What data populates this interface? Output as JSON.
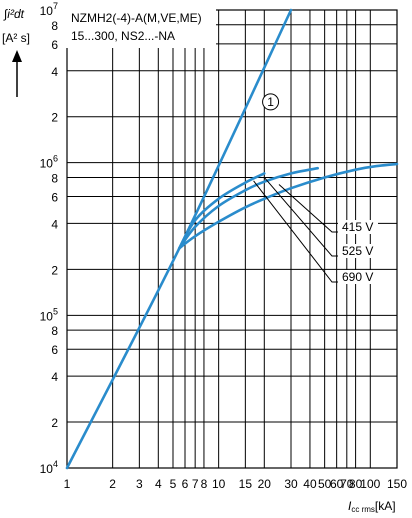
{
  "chart_data": {
    "type": "line",
    "title_lines": [
      "NZMH2(-4)-A(M,VE,ME)",
      "15...300, NS2...-NA"
    ],
    "ylabel_top": "∫i²dt",
    "ylabel_unit": "[A² s]",
    "xlabel": "I_cc rms [kA]",
    "xlabel_main": "I",
    "xlabel_sub": "cc rms",
    "xlabel_unit": "[kA]",
    "x_scale": "log",
    "y_scale": "log",
    "xlim": [
      1,
      150
    ],
    "ylim": [
      10000,
      10000000
    ],
    "grid": true,
    "x_ticks": [
      1,
      2,
      3,
      4,
      5,
      6,
      7,
      8,
      10,
      15,
      20,
      30,
      40,
      50,
      60,
      70,
      80,
      100,
      150
    ],
    "x_tick_labels": [
      "1",
      "2",
      "3",
      "4",
      "5",
      "6",
      "7",
      "8",
      "10",
      "15",
      "20",
      "30",
      "40",
      "50",
      "60",
      "70",
      "80",
      "100",
      "150"
    ],
    "y_ticks": [
      {
        "value": 10000,
        "mantissa": "10",
        "exp": "4"
      },
      {
        "value": 20000,
        "mantissa": "2",
        "exp": ""
      },
      {
        "value": 40000,
        "mantissa": "4",
        "exp": ""
      },
      {
        "value": 60000,
        "mantissa": "6",
        "exp": ""
      },
      {
        "value": 80000,
        "mantissa": "8",
        "exp": ""
      },
      {
        "value": 100000,
        "mantissa": "10",
        "exp": "5"
      },
      {
        "value": 200000,
        "mantissa": "2",
        "exp": ""
      },
      {
        "value": 400000,
        "mantissa": "4",
        "exp": ""
      },
      {
        "value": 600000,
        "mantissa": "6",
        "exp": ""
      },
      {
        "value": 800000,
        "mantissa": "8",
        "exp": ""
      },
      {
        "value": 1000000,
        "mantissa": "10",
        "exp": "6"
      },
      {
        "value": 2000000,
        "mantissa": "2",
        "exp": ""
      },
      {
        "value": 4000000,
        "mantissa": "4",
        "exp": ""
      },
      {
        "value": 6000000,
        "mantissa": "6",
        "exp": ""
      },
      {
        "value": 8000000,
        "mantissa": "8",
        "exp": ""
      },
      {
        "value": 10000000,
        "mantissa": "10",
        "exp": "7"
      }
    ],
    "series": [
      {
        "name": "1",
        "color": "#2a8ccc",
        "points": [
          [
            1,
            10000
          ],
          [
            5.5,
            275000
          ],
          [
            30,
            10000000
          ]
        ]
      },
      {
        "name": "415 V",
        "color": "#2a8ccc",
        "points": [
          [
            5.5,
            275000
          ],
          [
            7,
            380000
          ],
          [
            10,
            520000
          ],
          [
            15,
            660000
          ],
          [
            20,
            750000
          ],
          [
            30,
            850000
          ],
          [
            45,
            920000
          ]
        ]
      },
      {
        "name": "525 V",
        "color": "#2a8ccc",
        "points": [
          [
            5.5,
            275000
          ],
          [
            7,
            420000
          ],
          [
            10,
            580000
          ],
          [
            15,
            740000
          ],
          [
            20,
            850000
          ]
        ]
      },
      {
        "name": "690 V",
        "color": "#2a8ccc",
        "points": [
          [
            5.5,
            275000
          ],
          [
            7,
            330000
          ],
          [
            10,
            410000
          ],
          [
            15,
            510000
          ],
          [
            20,
            580000
          ],
          [
            30,
            680000
          ],
          [
            50,
            800000
          ],
          [
            80,
            900000
          ],
          [
            110,
            950000
          ],
          [
            150,
            980000
          ]
        ]
      }
    ],
    "annotations": [
      {
        "text": "415 V",
        "series": "415 V",
        "x": 25,
        "y": 720000
      },
      {
        "text": "525 V",
        "series": "525 V",
        "x": 20,
        "y": 800000
      },
      {
        "text": "690 V",
        "series": "690 V",
        "x": 17,
        "y": 760000
      }
    ],
    "marker_label": {
      "text": "1",
      "x": 22,
      "y": 2500000
    }
  }
}
